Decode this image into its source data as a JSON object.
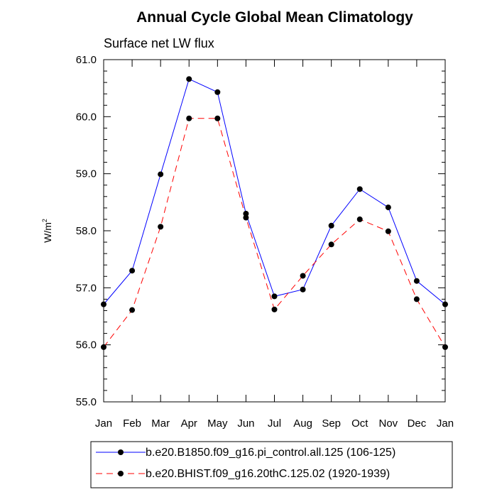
{
  "chart_data": {
    "type": "line",
    "title": "Annual Cycle Global Mean Climatology",
    "subtitle": "Surface net LW flux",
    "xlabel": "",
    "ylabel": "W/m",
    "ylabel_superscript": "2",
    "categories": [
      "Jan",
      "Feb",
      "Mar",
      "Apr",
      "May",
      "Jun",
      "Jul",
      "Aug",
      "Sep",
      "Oct",
      "Nov",
      "Dec",
      "Jan"
    ],
    "ylim": [
      55.0,
      61.0
    ],
    "yticks": [
      "55.0",
      "56.0",
      "57.0",
      "58.0",
      "59.0",
      "60.0",
      "61.0"
    ],
    "grid": false,
    "legend_position": "bottom",
    "series": [
      {
        "name": "b.e20.B1850.f09_g16.pi_control.all.125 (106-125)",
        "color": "#0000ff",
        "dash": "solid",
        "values": [
          56.71,
          57.3,
          58.99,
          60.66,
          60.43,
          58.3,
          56.85,
          56.97,
          58.09,
          58.73,
          58.41,
          57.12,
          56.71
        ]
      },
      {
        "name": "b.e20.BHIST.f09_g16.20thC.125.02 (1920-1939)",
        "color": "#ff0000",
        "dash": "dashed",
        "values": [
          55.96,
          56.61,
          58.07,
          59.97,
          59.97,
          58.23,
          56.62,
          57.21,
          57.76,
          58.2,
          57.99,
          56.8,
          55.96
        ]
      }
    ]
  }
}
